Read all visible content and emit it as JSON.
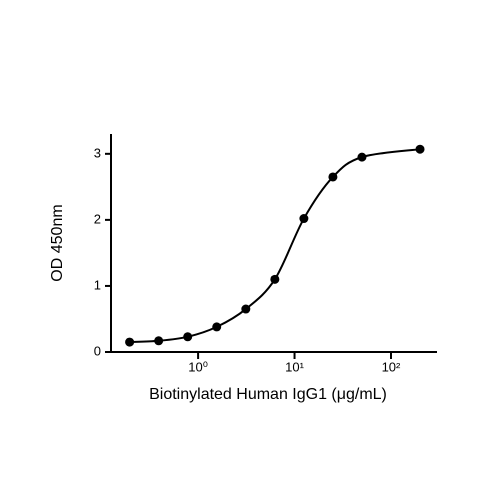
{
  "chart_data": {
    "type": "scatter",
    "x_label": "Biotinylated Human IgG1 (μg/mL)",
    "y_label": "OD 450nm",
    "x_scale": "log",
    "color": "#000000",
    "x": [
      0.195,
      0.39,
      0.78,
      1.56,
      3.125,
      6.25,
      12.5,
      25,
      50,
      200
    ],
    "values": [
      0.15,
      0.17,
      0.23,
      0.38,
      0.65,
      1.1,
      2.02,
      2.65,
      2.95,
      3.07
    ],
    "xlim": [
      0.125,
      300
    ],
    "ylim": [
      0,
      3.3
    ],
    "xticks": [
      {
        "value": 1,
        "label": "10⁰"
      },
      {
        "value": 10,
        "label": "10¹"
      },
      {
        "value": 100,
        "label": "10²"
      }
    ],
    "yticks": [
      0,
      1,
      2,
      3
    ]
  }
}
